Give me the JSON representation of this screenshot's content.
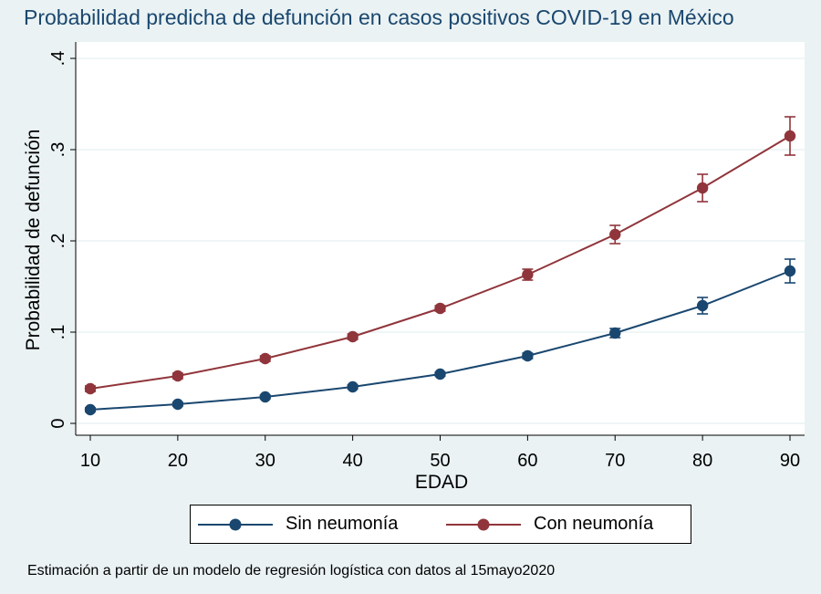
{
  "chart_data": {
    "type": "line",
    "title": "Probabilidad predicha de defunción en casos positivos COVID-19 en México",
    "xlabel": "EDAD",
    "ylabel": "Probabilidad de defunción",
    "x": [
      10,
      20,
      30,
      40,
      50,
      60,
      70,
      80,
      90
    ],
    "x_ticks": [
      10,
      20,
      30,
      40,
      50,
      60,
      70,
      80,
      90
    ],
    "x_tick_labels": [
      "10",
      "20",
      "30",
      "40",
      "50",
      "60",
      "70",
      "80",
      "90"
    ],
    "y_ticks": [
      0,
      0.1,
      0.2,
      0.3,
      0.4
    ],
    "y_tick_labels": [
      "0",
      ".1",
      ".2",
      ".3",
      ".4"
    ],
    "xlim": [
      10,
      90
    ],
    "ylim": [
      0,
      0.4
    ],
    "grid": true,
    "legend_position": "bottom",
    "series": [
      {
        "name": "Sin neumonía",
        "color": "#1a476f",
        "values": [
          0.015,
          0.021,
          0.029,
          0.04,
          0.054,
          0.074,
          0.099,
          0.129,
          0.167
        ],
        "ci_low": [
          0.013,
          0.019,
          0.027,
          0.038,
          0.052,
          0.071,
          0.094,
          0.12,
          0.154
        ],
        "ci_high": [
          0.017,
          0.023,
          0.031,
          0.042,
          0.056,
          0.077,
          0.104,
          0.138,
          0.18
        ]
      },
      {
        "name": "Con neumonía",
        "color": "#90353b",
        "values": [
          0.038,
          0.052,
          0.071,
          0.095,
          0.126,
          0.163,
          0.207,
          0.258,
          0.315
        ],
        "ci_low": [
          0.035,
          0.049,
          0.068,
          0.092,
          0.123,
          0.157,
          0.197,
          0.243,
          0.294
        ],
        "ci_high": [
          0.041,
          0.055,
          0.074,
          0.098,
          0.129,
          0.169,
          0.217,
          0.273,
          0.336
        ]
      }
    ],
    "note": "Estimación a partir de un modelo de regresión logística con datos al 15mayo2020"
  }
}
